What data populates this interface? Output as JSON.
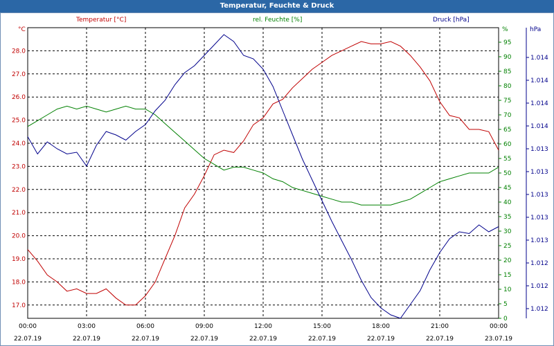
{
  "window": {
    "title": "Temperatur, Feuchte & Druck"
  },
  "colors": {
    "temperature": "#c00000",
    "humidity": "#008000",
    "pressure": "#00008b",
    "titlebar": "#2b67a6"
  },
  "chart_data": {
    "type": "line",
    "title": "Temperatur, Feuchte & Druck",
    "grid": true,
    "x_ticks": [
      {
        "time": "00:00",
        "date": "22.07.19"
      },
      {
        "time": "03:00",
        "date": "22.07.19"
      },
      {
        "time": "06:00",
        "date": "22.07.19"
      },
      {
        "time": "09:00",
        "date": "22.07.19"
      },
      {
        "time": "12:00",
        "date": "22.07.19"
      },
      {
        "time": "15:00",
        "date": "22.07.19"
      },
      {
        "time": "18:00",
        "date": "22.07.19"
      },
      {
        "time": "21:00",
        "date": "22.07.19"
      },
      {
        "time": "00:00",
        "date": "23.07.19"
      }
    ],
    "axes": {
      "temperature": {
        "label": "Temperatur [°C]",
        "unit": "°C",
        "ylim": [
          16.6,
          29.0
        ],
        "ticks": [
          "17.0",
          "18.0",
          "19.0",
          "20.0",
          "21.0",
          "22.0",
          "23.0",
          "24.0",
          "25.0",
          "26.0",
          "27.0",
          "28.0"
        ]
      },
      "humidity": {
        "label": "rel. Feuchte [%]",
        "unit": "%",
        "ylim": [
          0,
          100
        ],
        "ticks": [
          "0",
          "5",
          "10",
          "15",
          "20",
          "25",
          "30",
          "35",
          "40",
          "45",
          "50",
          "55",
          "60",
          "65",
          "70",
          "75",
          "80",
          "85",
          "90",
          "95",
          "%"
        ]
      },
      "pressure": {
        "label": "Druck [hPa]",
        "unit": "hPa",
        "ticks": [
          "1.012",
          "1.012",
          "1.012",
          "1.013",
          "1.013",
          "1.013",
          "1.013",
          "1.013",
          "1.014",
          "1.014",
          "1.014",
          "1.014"
        ]
      }
    },
    "series": [
      {
        "name": "Temperatur [°C]",
        "x_hours": [
          0,
          0.5,
          1,
          1.5,
          2,
          2.5,
          3,
          3.5,
          4,
          4.5,
          5,
          5.5,
          6,
          6.5,
          7,
          7.5,
          8,
          8.5,
          9,
          9.5,
          10,
          10.5,
          11,
          11.5,
          12,
          12.5,
          13,
          13.5,
          14,
          14.5,
          15,
          15.5,
          16,
          16.5,
          17,
          17.5,
          18,
          18.5,
          19,
          19.5,
          20,
          20.5,
          21,
          21.5,
          22,
          22.5,
          23,
          23.5,
          24
        ],
        "values": [
          19.4,
          18.9,
          18.3,
          18.0,
          17.6,
          17.7,
          17.5,
          17.5,
          17.7,
          17.3,
          17.0,
          17.0,
          17.4,
          18.0,
          19.0,
          20.0,
          21.2,
          21.8,
          22.6,
          23.5,
          23.7,
          23.6,
          24.1,
          24.8,
          25.1,
          25.7,
          25.9,
          26.4,
          26.8,
          27.2,
          27.5,
          27.8,
          28.0,
          28.2,
          28.4,
          28.3,
          28.3,
          28.4,
          28.2,
          27.8,
          27.3,
          26.7,
          25.8,
          25.2,
          25.1,
          24.6,
          24.6,
          24.5,
          23.7
        ]
      },
      {
        "name": "rel. Feuchte [%]",
        "x_hours": [
          0,
          0.5,
          1,
          1.5,
          2,
          2.5,
          3,
          3.5,
          4,
          4.5,
          5,
          5.5,
          6,
          6.5,
          7,
          7.5,
          8,
          8.5,
          9,
          9.5,
          10,
          10.5,
          11,
          11.5,
          12,
          12.5,
          13,
          13.5,
          14,
          14.5,
          15,
          15.5,
          16,
          16.5,
          17,
          17.5,
          18,
          18.5,
          19,
          19.5,
          20,
          20.5,
          21,
          21.5,
          22,
          22.5,
          23,
          23.5,
          24
        ],
        "values": [
          66,
          68,
          70,
          72,
          73,
          72,
          73,
          72,
          71,
          72,
          73,
          72,
          72,
          70,
          67,
          64,
          61,
          58,
          55,
          53,
          51,
          52,
          52,
          51,
          50,
          48,
          47,
          45,
          44,
          43,
          42,
          41,
          40,
          40,
          39,
          39,
          39,
          39,
          40,
          41,
          43,
          45,
          47,
          48,
          49,
          50,
          50,
          50,
          52
        ]
      },
      {
        "name": "Druck [hPa]",
        "x_hours": [
          0,
          0.5,
          1,
          1.5,
          2,
          2.5,
          3,
          3.5,
          4,
          4.5,
          5,
          5.5,
          6,
          6.5,
          7,
          7.5,
          8,
          8.5,
          9,
          9.5,
          10,
          10.5,
          11,
          11.5,
          12,
          12.5,
          13,
          13.5,
          14,
          14.5,
          15,
          15.5,
          16,
          16.5,
          17,
          17.5,
          18,
          18.5,
          19,
          19.5,
          20,
          20.5,
          21,
          21.5,
          22,
          22.5,
          23,
          23.5,
          24
        ],
        "values": [
          1013.55,
          1013.45,
          1013.52,
          1013.48,
          1013.45,
          1013.46,
          1013.38,
          1013.5,
          1013.58,
          1013.56,
          1013.53,
          1013.58,
          1013.62,
          1013.7,
          1013.76,
          1013.85,
          1013.92,
          1013.96,
          1014.02,
          1014.08,
          1014.14,
          1014.1,
          1014.02,
          1014.0,
          1013.94,
          1013.84,
          1013.7,
          1013.56,
          1013.42,
          1013.3,
          1013.18,
          1013.06,
          1012.95,
          1012.84,
          1012.72,
          1012.62,
          1012.56,
          1012.52,
          1012.5,
          1012.58,
          1012.66,
          1012.78,
          1012.88,
          1012.96,
          1013.0,
          1012.99,
          1013.04,
          1013.0,
          1013.03
        ]
      }
    ]
  }
}
